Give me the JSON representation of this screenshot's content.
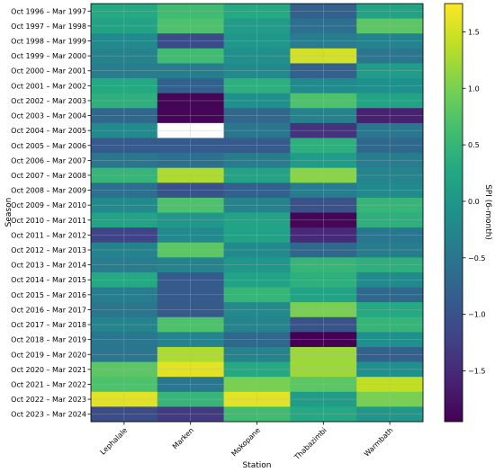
{
  "chart_data": {
    "type": "heatmap",
    "xlabel": "Station",
    "ylabel": "Season",
    "colorbar_label": "SPI (6-month)",
    "colormap": "viridis",
    "vmin": -1.95,
    "vmax": 1.75,
    "missing_color": "#ffffff",
    "grid": true,
    "columns": [
      "Lephalale",
      "Marken",
      "Mokopane",
      "Thabazimbi",
      "Warmbath"
    ],
    "rows": [
      "Oct 1996 – Mar 1997",
      "Oct 1997 – Mar 1998",
      "Oct 1998 – Mar 1999",
      "Oct 1999 – Mar 2000",
      "Oct 2000 – Mar 2001",
      "Oct 2001 – Mar 2002",
      "Oct 2002 – Mar 2003",
      "Oct 2003 – Mar 2004",
      "Oct 2004 – Mar 2005",
      "Oct 2005 – Mar 2006",
      "Oct 2006 – Mar 2007",
      "Oct 2007 – Mar 2008",
      "Oct 2008 – Mar 2009",
      "Oct 2009 – Mar 2010",
      "Oct 2010 – Mar 2011",
      "Oct 2011 – Mar 2012",
      "Oct 2012 – Mar 2013",
      "Oct 2013 – Mar 2014",
      "Oct 2014 – Mar 2015",
      "Oct 2015 – Mar 2016",
      "Oct 2016 – Mar 2017",
      "Oct 2017 – Mar 2018",
      "Oct 2018 – Mar 2019",
      "Oct 2019 – Mar 2020",
      "Oct 2020 – Mar 2021",
      "Oct 2021 – Mar 2022",
      "Oct 2022 – Mar 2023",
      "Oct 2023 – Mar 2024"
    ],
    "values": [
      [
        0.3,
        0.6,
        0.3,
        -0.8,
        0.2
      ],
      [
        0.2,
        0.7,
        0.1,
        -0.6,
        0.8
      ],
      [
        -0.2,
        -1.1,
        0.0,
        -0.4,
        -0.3
      ],
      [
        -0.3,
        0.6,
        -0.1,
        1.5,
        -0.5
      ],
      [
        -0.4,
        -0.4,
        -0.2,
        -0.8,
        0.1
      ],
      [
        0.3,
        -0.8,
        0.4,
        -0.2,
        -0.1
      ],
      [
        0.4,
        -1.9,
        -0.1,
        0.7,
        0.2
      ],
      [
        -0.7,
        -1.9,
        -0.7,
        -0.3,
        -1.6
      ],
      [
        -0.2,
        null,
        -0.5,
        -1.4,
        -0.5
      ],
      [
        -0.9,
        -0.9,
        -0.9,
        0.4,
        -0.7
      ],
      [
        -0.5,
        -0.6,
        -0.4,
        0.1,
        -0.4
      ],
      [
        0.5,
        1.3,
        0.2,
        1.1,
        -0.3
      ],
      [
        -0.6,
        -1.0,
        -0.8,
        -0.4,
        -0.2
      ],
      [
        -0.2,
        0.7,
        -0.3,
        -1.0,
        0.5
      ],
      [
        0.2,
        0.0,
        0.2,
        -1.9,
        0.4
      ],
      [
        -1.2,
        -0.2,
        0.2,
        -1.5,
        -0.5
      ],
      [
        -0.3,
        0.8,
        -0.2,
        -0.7,
        -0.4
      ],
      [
        -0.4,
        -0.3,
        0.0,
        0.5,
        0.4
      ],
      [
        0.3,
        -0.9,
        0.2,
        0.4,
        -0.2
      ],
      [
        -0.4,
        -0.9,
        0.5,
        0.2,
        -0.7
      ],
      [
        -0.5,
        -0.9,
        -0.2,
        1.0,
        0.3
      ],
      [
        -0.3,
        0.7,
        -0.3,
        -1.0,
        0.5
      ],
      [
        -0.5,
        -0.3,
        -0.7,
        -1.95,
        -0.1
      ],
      [
        -0.5,
        1.3,
        -0.3,
        1.2,
        -0.8
      ],
      [
        0.8,
        1.6,
        0.3,
        1.2,
        -0.1
      ],
      [
        0.7,
        -0.5,
        1.0,
        0.8,
        1.4
      ],
      [
        1.6,
        0.5,
        1.6,
        0.1,
        1.0
      ],
      [
        -1.1,
        -1.3,
        0.6,
        0.3,
        0.0
      ]
    ],
    "colorbar_ticks": [
      1.5,
      1.0,
      0.5,
      0.0,
      -0.5,
      -1.0,
      -1.5
    ],
    "colorbar_tick_labels": [
      "1.5",
      "1.0",
      "0.5",
      "0.0",
      "−0.5",
      "−1.0",
      "−1.5"
    ]
  }
}
